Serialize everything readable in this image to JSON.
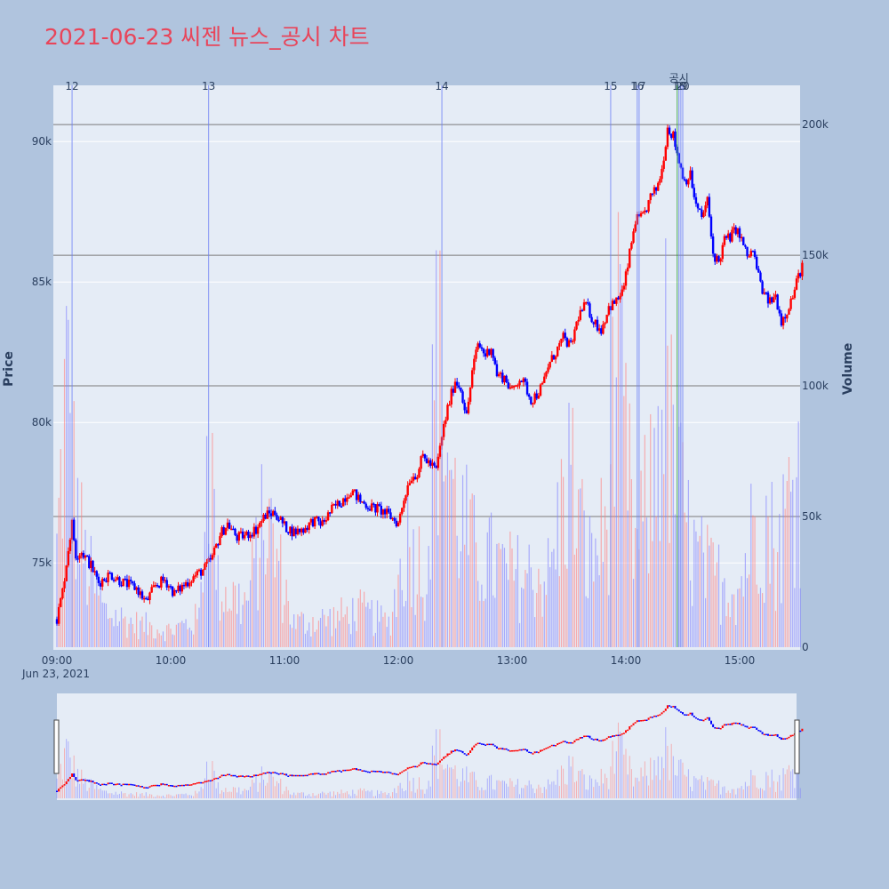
{
  "chart_data": {
    "type": "candlestick",
    "title": "2021-06-23 씨젠 뉴스_공시 차트",
    "ylabel_price": "Price",
    "ylabel_volume": "Volume",
    "price_range": [
      72000,
      92000
    ],
    "volume_range": [
      0,
      215000
    ],
    "price_ticks": [
      "75k",
      "80k",
      "85k",
      "90k"
    ],
    "price_tick_values": [
      75000,
      80000,
      85000,
      90000
    ],
    "volume_ticks": [
      "0",
      "50k",
      "100k",
      "150k",
      "200k"
    ],
    "volume_tick_values": [
      0,
      50000,
      100000,
      150000,
      200000
    ],
    "time_ticks": [
      "09:00",
      "10:00",
      "11:00",
      "12:00",
      "13:00",
      "14:00",
      "15:00"
    ],
    "time_tick_values": [
      0,
      60,
      120,
      180,
      240,
      300,
      360
    ],
    "date_label": "Jun 23, 2021",
    "time_range_minutes": [
      0,
      390
    ],
    "colors": {
      "up": "#ff0000",
      "down": "#0000ff",
      "news": "#6b7ff5",
      "disclosure": "#2ca02c"
    },
    "price_path": [
      [
        0,
        73000
      ],
      [
        3,
        74000
      ],
      [
        6,
        75500
      ],
      [
        8,
        76400
      ],
      [
        10,
        75300
      ],
      [
        13,
        75400
      ],
      [
        18,
        74900
      ],
      [
        22,
        74300
      ],
      [
        28,
        74600
      ],
      [
        35,
        74300
      ],
      [
        42,
        74100
      ],
      [
        47,
        73600
      ],
      [
        52,
        74200
      ],
      [
        57,
        74400
      ],
      [
        62,
        73900
      ],
      [
        70,
        74400
      ],
      [
        78,
        74800
      ],
      [
        82,
        75200
      ],
      [
        86,
        76000
      ],
      [
        90,
        76400
      ],
      [
        95,
        75900
      ],
      [
        100,
        76000
      ],
      [
        105,
        76200
      ],
      [
        110,
        76700
      ],
      [
        115,
        76800
      ],
      [
        120,
        76300
      ],
      [
        125,
        76100
      ],
      [
        130,
        76200
      ],
      [
        135,
        76500
      ],
      [
        140,
        76400
      ],
      [
        145,
        76900
      ],
      [
        150,
        77200
      ],
      [
        155,
        77600
      ],
      [
        160,
        77200
      ],
      [
        165,
        77000
      ],
      [
        170,
        76900
      ],
      [
        175,
        76700
      ],
      [
        180,
        76400
      ],
      [
        183,
        77300
      ],
      [
        186,
        78000
      ],
      [
        190,
        78200
      ],
      [
        193,
        78800
      ],
      [
        197,
        78500
      ],
      [
        200,
        78300
      ],
      [
        203,
        79500
      ],
      [
        206,
        80500
      ],
      [
        210,
        81500
      ],
      [
        213,
        81200
      ],
      [
        216,
        80200
      ],
      [
        219,
        81800
      ],
      [
        222,
        82800
      ],
      [
        226,
        82400
      ],
      [
        229,
        82700
      ],
      [
        232,
        81700
      ],
      [
        236,
        81600
      ],
      [
        240,
        81100
      ],
      [
        244,
        81600
      ],
      [
        247,
        81300
      ],
      [
        250,
        80800
      ],
      [
        253,
        81000
      ],
      [
        256,
        81300
      ],
      [
        259,
        82000
      ],
      [
        263,
        82500
      ],
      [
        267,
        83000
      ],
      [
        271,
        82700
      ],
      [
        275,
        83800
      ],
      [
        279,
        84200
      ],
      [
        283,
        83600
      ],
      [
        287,
        83300
      ],
      [
        291,
        84100
      ],
      [
        295,
        84300
      ],
      [
        299,
        84800
      ],
      [
        302,
        86000
      ],
      [
        305,
        87200
      ],
      [
        309,
        87300
      ],
      [
        313,
        88000
      ],
      [
        316,
        88300
      ],
      [
        319,
        89000
      ],
      [
        322,
        90500
      ],
      [
        325,
        90200
      ],
      [
        328,
        89300
      ],
      [
        331,
        88600
      ],
      [
        334,
        88800
      ],
      [
        337,
        87700
      ],
      [
        340,
        87300
      ],
      [
        343,
        87900
      ],
      [
        346,
        86000
      ],
      [
        349,
        85700
      ],
      [
        352,
        86500
      ],
      [
        355,
        86600
      ],
      [
        358,
        86900
      ],
      [
        361,
        86500
      ],
      [
        364,
        85900
      ],
      [
        367,
        86100
      ],
      [
        370,
        85200
      ],
      [
        373,
        84500
      ],
      [
        376,
        84300
      ],
      [
        379,
        84500
      ],
      [
        382,
        83600
      ],
      [
        385,
        84000
      ],
      [
        388,
        84500
      ],
      [
        391,
        85200
      ],
      [
        393,
        85600
      ]
    ],
    "volume_profile": [
      [
        0,
        40000
      ],
      [
        5,
        110000
      ],
      [
        10,
        60000
      ],
      [
        15,
        35000
      ],
      [
        25,
        15000
      ],
      [
        40,
        10000
      ],
      [
        60,
        7000
      ],
      [
        75,
        12000
      ],
      [
        80,
        95000
      ],
      [
        85,
        25000
      ],
      [
        100,
        18000
      ],
      [
        110,
        55000
      ],
      [
        125,
        10000
      ],
      [
        145,
        12000
      ],
      [
        160,
        15000
      ],
      [
        175,
        10000
      ],
      [
        185,
        45000
      ],
      [
        195,
        30000
      ],
      [
        200,
        120000
      ],
      [
        210,
        60000
      ],
      [
        220,
        40000
      ],
      [
        240,
        30000
      ],
      [
        260,
        30000
      ],
      [
        270,
        75000
      ],
      [
        280,
        35000
      ],
      [
        290,
        50000
      ],
      [
        295,
        120000
      ],
      [
        300,
        80000
      ],
      [
        305,
        40000
      ],
      [
        315,
        70000
      ],
      [
        320,
        120000
      ],
      [
        325,
        75000
      ],
      [
        335,
        40000
      ],
      [
        345,
        30000
      ],
      [
        360,
        25000
      ],
      [
        370,
        60000
      ],
      [
        380,
        40000
      ],
      [
        390,
        75000
      ],
      [
        393,
        70000
      ]
    ],
    "news_markers": [
      {
        "label": "12",
        "minute": 8
      },
      {
        "label": "13",
        "minute": 80
      },
      {
        "label": "14",
        "minute": 203
      },
      {
        "label": "15",
        "minute": 292
      },
      {
        "label": "16",
        "minute": 306
      },
      {
        "label": "17",
        "minute": 307
      },
      {
        "label": "18",
        "minute": 328
      },
      {
        "label": "19",
        "minute": 329
      },
      {
        "label": "20",
        "minute": 330
      }
    ],
    "disclosure_markers": [
      {
        "label": "공시",
        "minute": 328
      }
    ]
  }
}
